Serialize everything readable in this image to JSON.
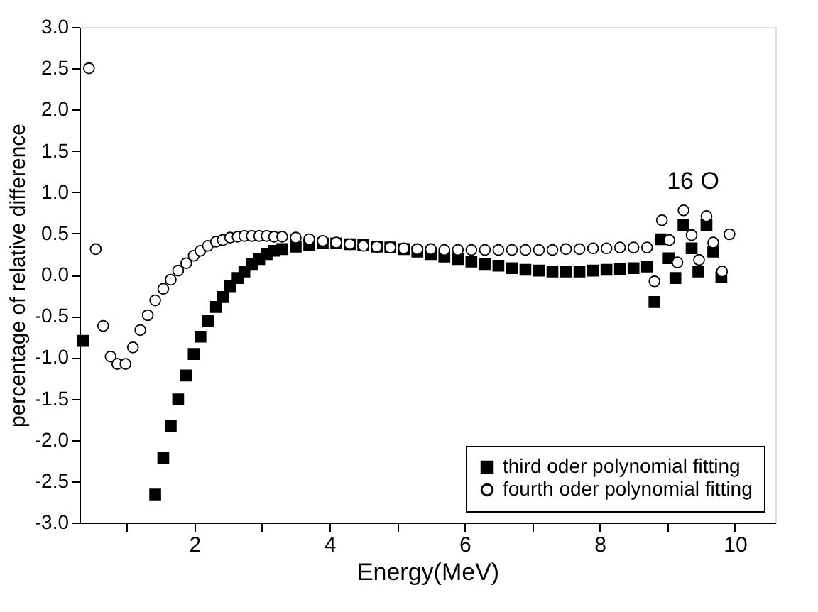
{
  "chart_data": {
    "type": "scatter",
    "xlabel": "Energy(MeV)",
    "ylabel": "percentage of relative difference",
    "xlim": [
      0.3,
      10.6
    ],
    "ylim": [
      -3.0,
      3.0
    ],
    "xticks": [
      {
        "value": 1,
        "label": null
      },
      2,
      {
        "value": 3,
        "label": null
      },
      4,
      {
        "value": 5,
        "label": null
      },
      6,
      {
        "value": 7,
        "label": null
      },
      8,
      {
        "value": 9,
        "label": null
      },
      10
    ],
    "yticks": [
      {
        "value": -3,
        "label": "-3.0"
      },
      {
        "value": -2.5,
        "label": "-2.5"
      },
      {
        "value": -2,
        "label": "-2.0"
      },
      {
        "value": -1.5,
        "label": "-1.5"
      },
      {
        "value": -1,
        "label": "-1.0"
      },
      {
        "value": -0.5,
        "label": "-0.5"
      },
      {
        "value": 0,
        "label": "0.0"
      },
      {
        "value": 0.5,
        "label": "0.5"
      },
      {
        "value": 1,
        "label": "1.0"
      },
      {
        "value": 1.5,
        "label": "1.5"
      },
      {
        "value": 2,
        "label": "2.0"
      },
      {
        "value": 2.5,
        "label": "2.5"
      },
      {
        "value": 3,
        "label": "3.0"
      }
    ],
    "legend": "bottom right",
    "grid": false,
    "annotations": [
      "16 O"
    ],
    "series": [
      {
        "name": "third oder polynomial fitting",
        "color": "#000000",
        "marker": "square",
        "x": [
          0.35,
          1.42,
          1.54,
          1.65,
          1.76,
          1.88,
          1.99,
          2.09,
          2.2,
          2.32,
          2.42,
          2.53,
          2.64,
          2.74,
          2.85,
          2.96,
          3.07,
          3.18,
          3.3,
          3.5,
          3.7,
          3.9,
          4.1,
          4.3,
          4.5,
          4.7,
          4.9,
          5.1,
          5.3,
          5.5,
          5.7,
          5.9,
          6.1,
          6.3,
          6.5,
          6.7,
          6.9,
          7.1,
          7.3,
          7.5,
          7.7,
          7.9,
          8.1,
          8.3,
          8.5,
          8.7,
          8.81,
          8.9,
          9.02,
          9.12,
          9.24,
          9.36,
          9.46,
          9.58,
          9.68,
          9.8
        ],
        "values": [
          -0.8,
          -2.66,
          -2.22,
          -1.83,
          -1.51,
          -1.22,
          -0.96,
          -0.75,
          -0.56,
          -0.39,
          -0.27,
          -0.14,
          -0.04,
          0.04,
          0.13,
          0.19,
          0.25,
          0.29,
          0.31,
          0.34,
          0.36,
          0.38,
          0.38,
          0.37,
          0.36,
          0.34,
          0.33,
          0.31,
          0.28,
          0.25,
          0.22,
          0.19,
          0.16,
          0.13,
          0.11,
          0.08,
          0.06,
          0.05,
          0.04,
          0.04,
          0.04,
          0.05,
          0.06,
          0.07,
          0.08,
          0.1,
          -0.33,
          0.43,
          0.2,
          -0.04,
          0.6,
          0.32,
          0.04,
          0.6,
          0.28,
          -0.03
        ]
      },
      {
        "name": "fourth oder polynomial fitting",
        "color": "#000000",
        "marker": "circle",
        "x": [
          0.44,
          0.54,
          0.65,
          0.76,
          0.86,
          0.98,
          1.09,
          1.2,
          1.31,
          1.42,
          1.54,
          1.65,
          1.76,
          1.88,
          1.99,
          2.09,
          2.2,
          2.32,
          2.42,
          2.53,
          2.64,
          2.74,
          2.85,
          2.96,
          3.07,
          3.18,
          3.3,
          3.5,
          3.7,
          3.9,
          4.1,
          4.3,
          4.5,
          4.7,
          4.9,
          5.1,
          5.3,
          5.5,
          5.7,
          5.9,
          6.1,
          6.3,
          6.5,
          6.7,
          6.9,
          7.1,
          7.3,
          7.5,
          7.7,
          7.9,
          8.1,
          8.3,
          8.5,
          8.7,
          8.81,
          8.92,
          9.03,
          9.15,
          9.24,
          9.36,
          9.47,
          9.58,
          9.68,
          9.81,
          9.92
        ],
        "values": [
          2.5,
          0.31,
          -0.62,
          -0.99,
          -1.08,
          -1.08,
          -0.88,
          -0.67,
          -0.49,
          -0.31,
          -0.17,
          -0.06,
          0.05,
          0.14,
          0.23,
          0.29,
          0.35,
          0.4,
          0.42,
          0.45,
          0.46,
          0.47,
          0.47,
          0.47,
          0.47,
          0.46,
          0.46,
          0.45,
          0.43,
          0.41,
          0.39,
          0.37,
          0.35,
          0.34,
          0.33,
          0.32,
          0.31,
          0.31,
          0.3,
          0.3,
          0.3,
          0.3,
          0.3,
          0.3,
          0.3,
          0.3,
          0.3,
          0.31,
          0.31,
          0.32,
          0.32,
          0.33,
          0.33,
          0.33,
          -0.08,
          0.66,
          0.42,
          0.15,
          0.78,
          0.48,
          0.18,
          0.71,
          0.39,
          0.04,
          0.49
        ]
      }
    ]
  }
}
